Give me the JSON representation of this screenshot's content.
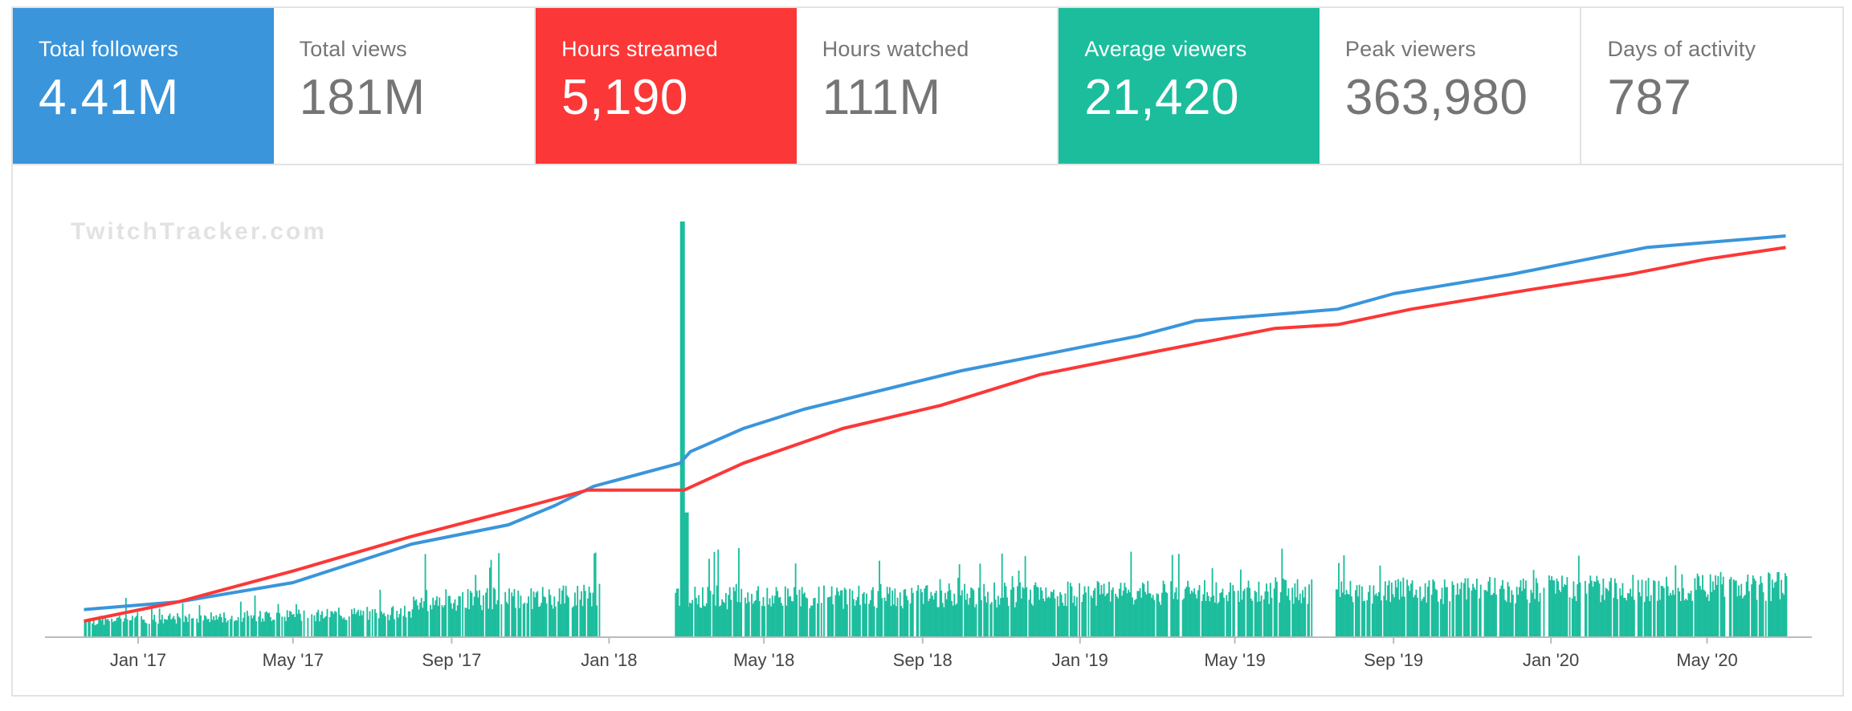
{
  "stats": [
    {
      "label": "Total followers",
      "value": "4.41M",
      "bg": "#3a95db"
    },
    {
      "label": "Total views",
      "value": "181M",
      "bg": ""
    },
    {
      "label": "Hours streamed",
      "value": "5,190",
      "bg": "#fc3737"
    },
    {
      "label": "Hours watched",
      "value": "111M",
      "bg": ""
    },
    {
      "label": "Average viewers",
      "value": "21,420",
      "bg": "#1cbd9d"
    },
    {
      "label": "Peak viewers",
      "value": "363,980",
      "bg": ""
    },
    {
      "label": "Days of activity",
      "value": "787",
      "bg": ""
    }
  ],
  "watermark": "TwitchTracker.com",
  "colors": {
    "followers": "#3a95db",
    "views": "#fc3737",
    "viewers": "#1cbd9d",
    "axis": "#bbbbbb",
    "tick_text": "#444444",
    "watermark": "#e2e2e2"
  },
  "chart_data": {
    "type": "line",
    "x_unit": "date",
    "x_range": [
      "2016-11-01",
      "2020-07-10"
    ],
    "x_ticks": [
      {
        "date": "2017-01-01",
        "label": "Jan '17"
      },
      {
        "date": "2017-05-01",
        "label": "May '17"
      },
      {
        "date": "2017-09-01",
        "label": "Sep '17"
      },
      {
        "date": "2018-01-01",
        "label": "Jan '18"
      },
      {
        "date": "2018-05-01",
        "label": "May '18"
      },
      {
        "date": "2018-09-01",
        "label": "Sep '18"
      },
      {
        "date": "2019-01-01",
        "label": "Jan '19"
      },
      {
        "date": "2019-05-01",
        "label": "May '19"
      },
      {
        "date": "2019-09-01",
        "label": "Sep '19"
      },
      {
        "date": "2020-01-01",
        "label": "Jan '20"
      },
      {
        "date": "2020-05-01",
        "label": "May '20"
      }
    ],
    "ylim": [
      0,
      1
    ],
    "y_scale_note": "",
    "series": [
      {
        "key": "followers",
        "points": [
          [
            "2016-11-20",
            0.03
          ],
          [
            "2017-02-01",
            0.05
          ],
          [
            "2017-05-01",
            0.1
          ],
          [
            "2017-08-01",
            0.2
          ],
          [
            "2017-10-15",
            0.25
          ],
          [
            "2017-11-20",
            0.3
          ],
          [
            "2017-12-20",
            0.35
          ],
          [
            "2018-02-25",
            0.41
          ],
          [
            "2018-03-05",
            0.44
          ],
          [
            "2018-04-15",
            0.5
          ],
          [
            "2018-06-01",
            0.55
          ],
          [
            "2018-08-01",
            0.6
          ],
          [
            "2018-10-01",
            0.65
          ],
          [
            "2018-12-01",
            0.69
          ],
          [
            "2019-01-15",
            0.72
          ],
          [
            "2019-02-15",
            0.74
          ],
          [
            "2019-04-01",
            0.78
          ],
          [
            "2019-06-15",
            0.8
          ],
          [
            "2019-07-20",
            0.81
          ],
          [
            "2019-09-01",
            0.85
          ],
          [
            "2019-12-01",
            0.9
          ],
          [
            "2020-01-15",
            0.93
          ],
          [
            "2020-03-15",
            0.97
          ],
          [
            "2020-07-01",
            1.0
          ]
        ]
      },
      {
        "key": "views",
        "points": [
          [
            "2016-11-20",
            0.0
          ],
          [
            "2017-02-01",
            0.05
          ],
          [
            "2017-05-01",
            0.13
          ],
          [
            "2017-08-01",
            0.22
          ],
          [
            "2017-11-01",
            0.3
          ],
          [
            "2017-12-15",
            0.34
          ],
          [
            "2018-02-28",
            0.34
          ],
          [
            "2018-04-15",
            0.41
          ],
          [
            "2018-07-01",
            0.5
          ],
          [
            "2018-09-15",
            0.56
          ],
          [
            "2018-12-01",
            0.64
          ],
          [
            "2019-03-01",
            0.7
          ],
          [
            "2019-06-01",
            0.76
          ],
          [
            "2019-07-20",
            0.77
          ],
          [
            "2019-09-15",
            0.81
          ],
          [
            "2019-12-15",
            0.86
          ],
          [
            "2020-03-01",
            0.9
          ],
          [
            "2020-05-01",
            0.94
          ],
          [
            "2020-07-01",
            0.97
          ]
        ]
      },
      {
        "key": "viewers",
        "type": "bar",
        "gaps": [
          [
            "2017-12-25",
            "2018-02-20"
          ],
          [
            "2019-06-30",
            "2019-07-17"
          ]
        ],
        "spikes": [
          [
            "2018-02-25",
            1.0
          ],
          [
            "2018-02-28",
            0.3
          ]
        ]
      }
    ]
  }
}
